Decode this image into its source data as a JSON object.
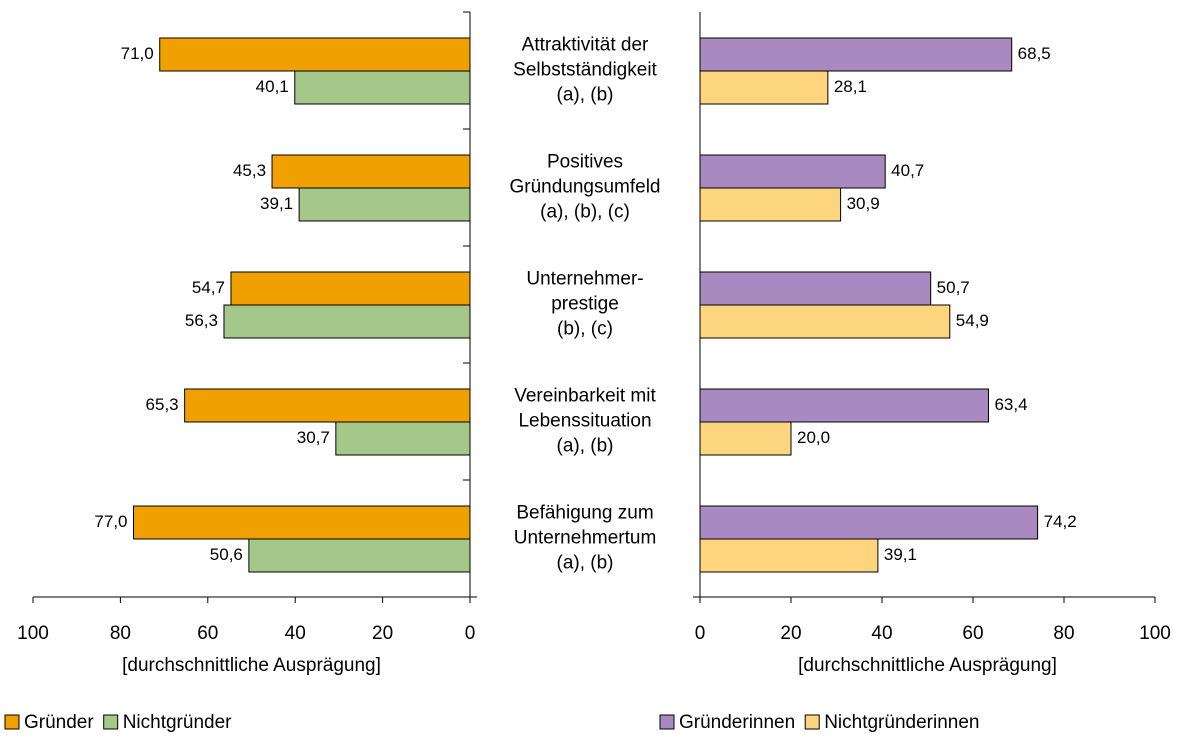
{
  "chart_data": [
    {
      "type": "bar",
      "orientation": "horizontal",
      "categories": [
        [
          "Attraktivität der",
          "Selbstständigkeit",
          "(a), (b)"
        ],
        [
          "Positives",
          "Gründungsumfeld",
          "(a), (b), (c)"
        ],
        [
          "Unternehmer-",
          "prestige",
          "(b), (c)"
        ],
        [
          "Vereinbarkeit mit",
          "Lebenssituation",
          "(a), (b)"
        ],
        [
          "Befähigung zum",
          "Unternehmertum",
          "(a), (b)"
        ]
      ],
      "series": [
        {
          "name": "Gründer",
          "color": "#f0a000",
          "values": [
            71.0,
            45.3,
            54.7,
            65.3,
            77.0
          ],
          "value_labels": [
            "71,0",
            "45,3",
            "54,7",
            "65,3",
            "77,0"
          ]
        },
        {
          "name": "Nichtgründer",
          "color": "#a5c88a",
          "values": [
            40.1,
            39.1,
            56.3,
            30.7,
            50.6
          ],
          "value_labels": [
            "40,1",
            "39,1",
            "56,3",
            "30,7",
            "50,6"
          ]
        }
      ],
      "xlim": [
        100,
        0
      ],
      "xticks": [
        100,
        80,
        60,
        40,
        20,
        0
      ],
      "xlabel": "[durchschnittliche Ausprägung]"
    },
    {
      "type": "bar",
      "orientation": "horizontal",
      "series": [
        {
          "name": "Gründerinnen",
          "color": "#a88ac0",
          "values": [
            68.5,
            40.7,
            50.7,
            63.4,
            74.2
          ],
          "value_labels": [
            "68,5",
            "40,7",
            "50,7",
            "63,4",
            "74,2"
          ]
        },
        {
          "name": "Nichtgründerinnen",
          "color": "#fcd57e",
          "values": [
            28.1,
            30.9,
            54.9,
            20.0,
            39.1
          ],
          "value_labels": [
            "28,1",
            "30,9",
            "54,9",
            "20,0",
            "39,1"
          ]
        }
      ],
      "xlim": [
        0,
        100
      ],
      "xticks": [
        0,
        20,
        40,
        60,
        80,
        100
      ],
      "xlabel": "[durchschnittliche Ausprägung]"
    }
  ]
}
